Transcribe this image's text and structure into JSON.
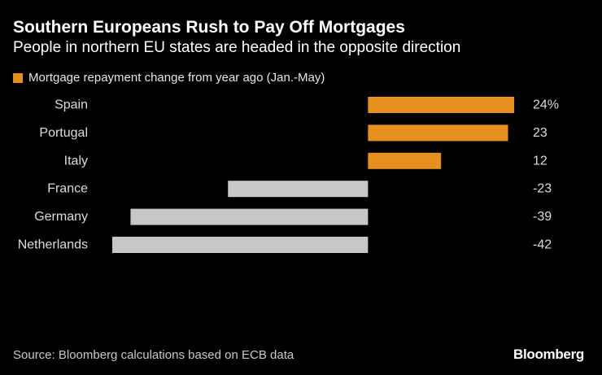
{
  "colors": {
    "background": "#000000",
    "positive": "#e8901f",
    "negative": "#c7c7c7"
  },
  "chart_data": {
    "type": "bar",
    "orientation": "horizontal",
    "title": "Southern Europeans Rush to Pay Off Mortgages",
    "subtitle": "People in northern EU states are headed in the opposite direction",
    "legend": [
      {
        "label": "Mortgage repayment change from year ago (Jan.-May)",
        "color": "#e8901f"
      }
    ],
    "categories": [
      "Spain",
      "Portugal",
      "Italy",
      "France",
      "Germany",
      "Netherlands"
    ],
    "values": [
      24,
      23,
      12,
      -23,
      -39,
      -42
    ],
    "value_labels": [
      "24%",
      "23",
      "12",
      "-23",
      "-39",
      "-42"
    ],
    "unit": "%",
    "xlim": [
      -42,
      24
    ]
  },
  "footer": {
    "source": "Source: Bloomberg calculations based on ECB data",
    "brand": "Bloomberg"
  }
}
